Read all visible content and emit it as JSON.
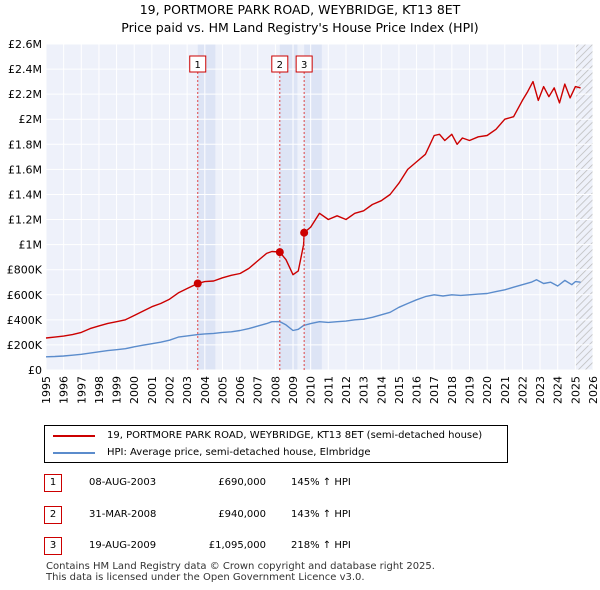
{
  "header": {
    "title": "19, PORTMORE PARK ROAD, WEYBRIDGE, KT13 8ET",
    "subtitle": "Price paid vs. HM Land Registry's House Price Index (HPI)"
  },
  "chart_data": {
    "type": "line",
    "title": "19, PORTMORE PARK ROAD, WEYBRIDGE, KT13 8ET",
    "subtitle": "Price paid vs. HM Land Registry's House Price Index (HPI)",
    "xlim": [
      1995,
      2026
    ],
    "ylim": [
      0,
      2600000
    ],
    "x_ticks": [
      1995,
      1996,
      1997,
      1998,
      1999,
      2000,
      2001,
      2002,
      2003,
      2004,
      2005,
      2006,
      2007,
      2008,
      2009,
      2010,
      2011,
      2012,
      2013,
      2014,
      2015,
      2016,
      2017,
      2018,
      2019,
      2020,
      2021,
      2022,
      2023,
      2024,
      2025,
      2026
    ],
    "y_ticks": [
      {
        "value": 0,
        "label": "£0"
      },
      {
        "value": 200000,
        "label": "£200K"
      },
      {
        "value": 400000,
        "label": "£400K"
      },
      {
        "value": 600000,
        "label": "£600K"
      },
      {
        "value": 800000,
        "label": "£800K"
      },
      {
        "value": 1000000,
        "label": "£1M"
      },
      {
        "value": 1200000,
        "label": "£1.2M"
      },
      {
        "value": 1400000,
        "label": "£1.4M"
      },
      {
        "value": 1600000,
        "label": "£1.6M"
      },
      {
        "value": 1800000,
        "label": "£1.8M"
      },
      {
        "value": 2000000,
        "label": "£2M"
      },
      {
        "value": 2200000,
        "label": "£2.2M"
      },
      {
        "value": 2400000,
        "label": "£2.4M"
      },
      {
        "value": 2600000,
        "label": "£2.6M"
      }
    ],
    "grid": true,
    "shaded_regions": [
      {
        "from": 2003.6,
        "to": 2004.6
      },
      {
        "from": 2008.25,
        "to": 2009.25
      },
      {
        "from": 2009.63,
        "to": 2010.63
      }
    ],
    "hatched_region": {
      "from": 2025.0,
      "to": 2026.0
    },
    "series": [
      {
        "name": "19, PORTMORE PARK ROAD, WEYBRIDGE, KT13 8ET (semi-detached house)",
        "color": "#cc0000",
        "x": [
          1995.0,
          1995.5,
          1996.0,
          1996.5,
          1997.0,
          1997.5,
          1998.0,
          1998.5,
          1999.0,
          1999.5,
          2000.0,
          2000.5,
          2001.0,
          2001.5,
          2002.0,
          2002.5,
          2003.0,
          2003.6,
          2004.0,
          2004.5,
          2005.0,
          2005.5,
          2006.0,
          2006.5,
          2007.0,
          2007.5,
          2007.8,
          2008.25,
          2008.6,
          2009.0,
          2009.3,
          2009.6,
          2009.63,
          2010.0,
          2010.5,
          2011.0,
          2011.5,
          2012.0,
          2012.5,
          2013.0,
          2013.5,
          2014.0,
          2014.5,
          2015.0,
          2015.5,
          2016.0,
          2016.5,
          2017.0,
          2017.3,
          2017.6,
          2018.0,
          2018.3,
          2018.6,
          2019.0,
          2019.5,
          2020.0,
          2020.5,
          2021.0,
          2021.5,
          2022.0,
          2022.3,
          2022.6,
          2022.9,
          2023.2,
          2023.5,
          2023.8,
          2024.1,
          2024.4,
          2024.7,
          2025.0,
          2025.3
        ],
        "values": [
          255000,
          262000,
          270000,
          282000,
          300000,
          330000,
          352000,
          372000,
          385000,
          400000,
          435000,
          470000,
          505000,
          530000,
          565000,
          615000,
          650000,
          690000,
          705000,
          710000,
          735000,
          755000,
          770000,
          810000,
          870000,
          930000,
          945000,
          940000,
          880000,
          760000,
          790000,
          1000000,
          1095000,
          1140000,
          1250000,
          1200000,
          1230000,
          1200000,
          1250000,
          1270000,
          1320000,
          1350000,
          1400000,
          1490000,
          1600000,
          1660000,
          1720000,
          1870000,
          1880000,
          1830000,
          1880000,
          1800000,
          1850000,
          1830000,
          1860000,
          1870000,
          1920000,
          2000000,
          2020000,
          2150000,
          2220000,
          2300000,
          2150000,
          2260000,
          2180000,
          2250000,
          2130000,
          2280000,
          2170000,
          2260000,
          2250000
        ]
      },
      {
        "name": "HPI: Average price, semi-detached house, Elmbridge",
        "color": "#5b8ccc",
        "x": [
          1995.0,
          1995.5,
          1996.0,
          1996.5,
          1997.0,
          1997.5,
          1998.0,
          1998.5,
          1999.0,
          1999.5,
          2000.0,
          2000.5,
          2001.0,
          2001.5,
          2002.0,
          2002.5,
          2003.0,
          2003.6,
          2004.0,
          2004.5,
          2005.0,
          2005.5,
          2006.0,
          2006.5,
          2007.0,
          2007.5,
          2007.8,
          2008.25,
          2008.6,
          2009.0,
          2009.3,
          2009.6,
          2010.0,
          2010.5,
          2011.0,
          2011.5,
          2012.0,
          2012.5,
          2013.0,
          2013.5,
          2014.0,
          2014.5,
          2015.0,
          2015.5,
          2016.0,
          2016.5,
          2017.0,
          2017.5,
          2018.0,
          2018.5,
          2019.0,
          2019.5,
          2020.0,
          2020.5,
          2021.0,
          2021.5,
          2022.0,
          2022.5,
          2022.8,
          2023.2,
          2023.6,
          2024.0,
          2024.4,
          2024.8,
          2025.0,
          2025.3
        ],
        "values": [
          105000,
          108000,
          112000,
          118000,
          125000,
          135000,
          145000,
          155000,
          162000,
          170000,
          185000,
          198000,
          210000,
          222000,
          238000,
          262000,
          272000,
          282000,
          288000,
          292000,
          300000,
          305000,
          315000,
          330000,
          350000,
          370000,
          385000,
          386000,
          360000,
          315000,
          325000,
          355000,
          370000,
          385000,
          380000,
          385000,
          390000,
          400000,
          405000,
          420000,
          440000,
          460000,
          500000,
          530000,
          560000,
          585000,
          600000,
          590000,
          600000,
          595000,
          600000,
          605000,
          610000,
          625000,
          640000,
          660000,
          680000,
          700000,
          720000,
          690000,
          700000,
          670000,
          715000,
          680000,
          705000,
          700000
        ]
      }
    ],
    "sales": [
      {
        "id": "1",
        "x": 2003.6,
        "value": 690000
      },
      {
        "id": "2",
        "x": 2008.25,
        "value": 940000
      },
      {
        "id": "3",
        "x": 2009.63,
        "value": 1095000
      }
    ]
  },
  "legend": {
    "items": [
      {
        "label": "19, PORTMORE PARK ROAD, WEYBRIDGE, KT13 8ET (semi-detached house)",
        "color": "#cc0000"
      },
      {
        "label": "HPI: Average price, semi-detached house, Elmbridge",
        "color": "#5b8ccc"
      }
    ]
  },
  "sales_table": [
    {
      "id": "1",
      "date": "08-AUG-2003",
      "price": "£690,000",
      "hpi": "145% ↑ HPI"
    },
    {
      "id": "2",
      "date": "31-MAR-2008",
      "price": "£940,000",
      "hpi": "143% ↑ HPI"
    },
    {
      "id": "3",
      "date": "19-AUG-2009",
      "price": "£1,095,000",
      "hpi": "218% ↑ HPI"
    }
  ],
  "footer": {
    "line1": "Contains HM Land Registry data © Crown copyright and database right 2025.",
    "line2": "This data is licensed under the Open Government Licence v3.0."
  }
}
